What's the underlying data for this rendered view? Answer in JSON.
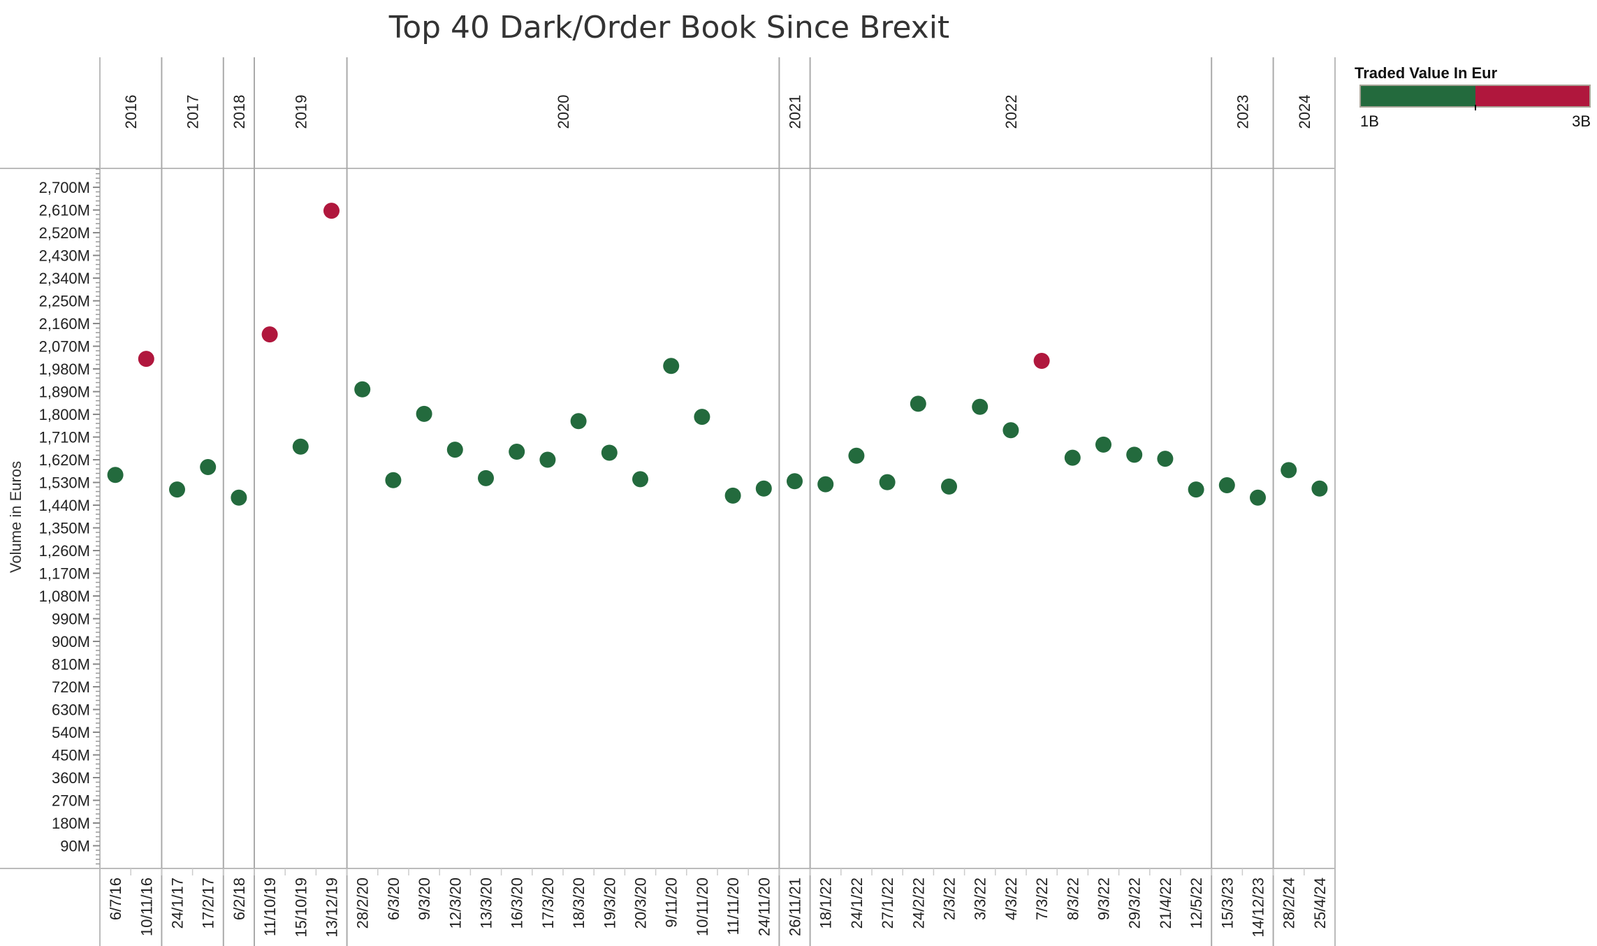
{
  "chart_data": {
    "type": "scatter",
    "title": "Top 40 Dark/Order Book Since Brexit",
    "xlabel": "",
    "ylabel": "Volume in Euros",
    "ylim": [
      0,
      2775
    ],
    "y_unit_suffix": "M",
    "y_ticks": [
      90,
      180,
      270,
      360,
      450,
      540,
      630,
      720,
      810,
      900,
      990,
      1080,
      1170,
      1260,
      1350,
      1440,
      1530,
      1620,
      1710,
      1800,
      1890,
      1980,
      2070,
      2160,
      2250,
      2340,
      2430,
      2520,
      2610,
      2700
    ],
    "y_tick_labels": [
      "90M",
      "180M",
      "270M",
      "360M",
      "450M",
      "540M",
      "630M",
      "720M",
      "810M",
      "900M",
      "990M",
      "1,080M",
      "1,170M",
      "1,260M",
      "1,350M",
      "1,440M",
      "1,530M",
      "1,620M",
      "1,710M",
      "1,800M",
      "1,890M",
      "1,980M",
      "2,070M",
      "2,160M",
      "2,250M",
      "2,340M",
      "2,430M",
      "2,520M",
      "2,610M",
      "2,700M"
    ],
    "years": [
      {
        "label": "2016",
        "count": 2
      },
      {
        "label": "2017",
        "count": 2
      },
      {
        "label": "2018",
        "count": 1
      },
      {
        "label": "2019",
        "count": 3
      },
      {
        "label": "2020",
        "count": 14
      },
      {
        "label": "2021",
        "count": 1
      },
      {
        "label": "2022",
        "count": 13
      },
      {
        "label": "2023",
        "count": 2
      },
      {
        "label": "2024",
        "count": 2
      }
    ],
    "categories": [
      "6/7/16",
      "10/11/16",
      "24/1/17",
      "17/2/17",
      "6/2/18",
      "11/10/19",
      "15/10/19",
      "13/12/19",
      "28/2/20",
      "6/3/20",
      "9/3/20",
      "12/3/20",
      "13/3/20",
      "16/3/20",
      "17/3/20",
      "18/3/20",
      "19/3/20",
      "20/3/20",
      "9/11/20",
      "10/11/20",
      "11/11/20",
      "24/11/20",
      "26/11/21",
      "18/1/22",
      "24/1/22",
      "27/1/22",
      "24/2/22",
      "2/3/22",
      "3/3/22",
      "4/3/22",
      "7/3/22",
      "8/3/22",
      "9/3/22",
      "29/3/22",
      "21/4/22",
      "12/5/22",
      "15/3/23",
      "14/12/23",
      "28/2/24",
      "25/4/24"
    ],
    "values": [
      1560,
      2020,
      1502,
      1591,
      1470,
      2117,
      1672,
      2607,
      1899,
      1539,
      1802,
      1660,
      1547,
      1652,
      1620,
      1773,
      1648,
      1543,
      1992,
      1790,
      1478,
      1506,
      1535,
      1523,
      1636,
      1531,
      1842,
      1514,
      1830,
      1737,
      2012,
      1628,
      1680,
      1640,
      1624,
      1502,
      1519,
      1470,
      1579,
      1506
    ],
    "legend": {
      "title": "Traded Value In Eur",
      "min_label": "1B",
      "max_label": "3B",
      "placement": "top-right",
      "threshold": 2000,
      "low_color": "#236a3d",
      "high_color": "#b0173d"
    },
    "grid": false
  }
}
